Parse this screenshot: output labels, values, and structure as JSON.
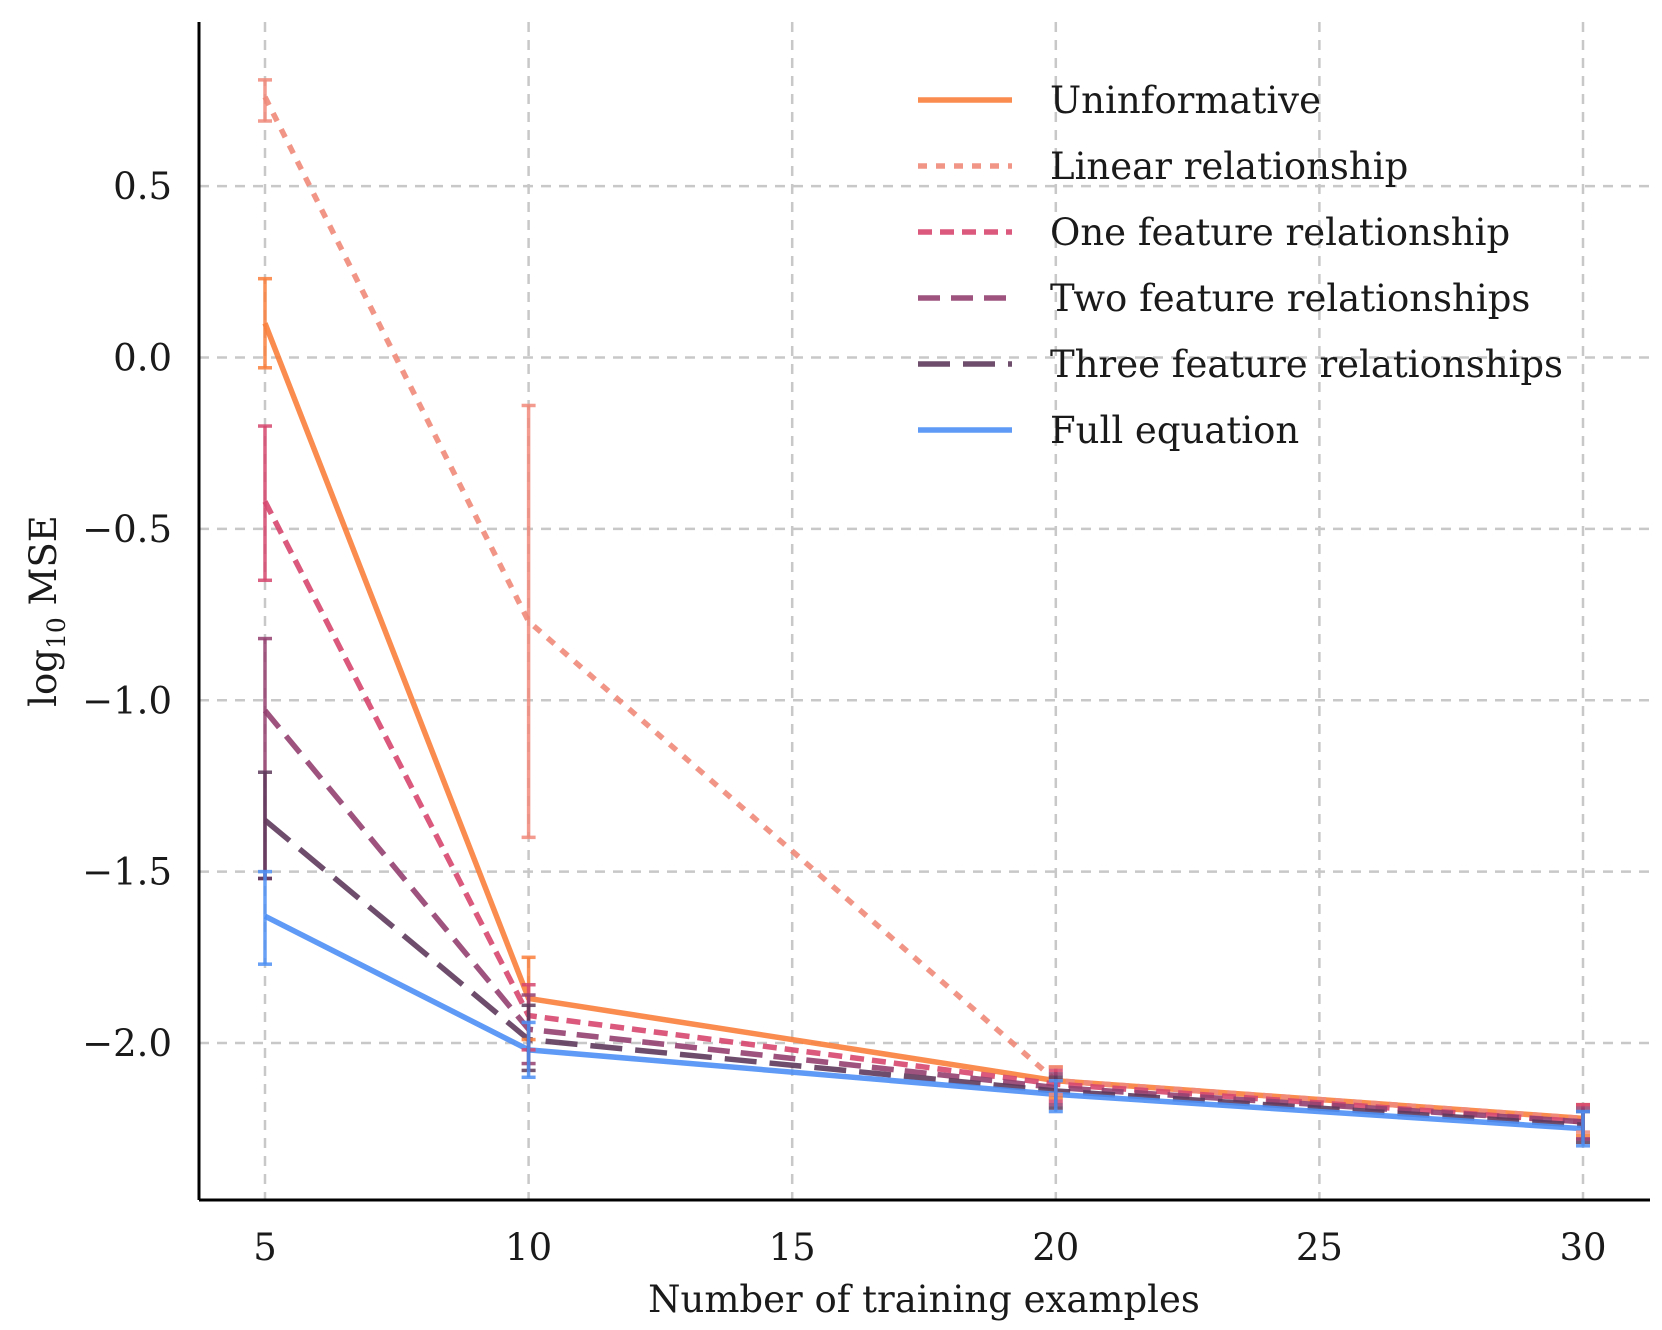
{
  "chart_data": {
    "type": "line",
    "title": "",
    "xlabel": "Number of training examples",
    "ylabel": "log10 MSE",
    "ylabel_base": "log",
    "ylabel_sub": "10",
    "ylabel_rest": " MSE",
    "x": [
      5,
      10,
      20,
      30
    ],
    "xlim": [
      3.75,
      31.25
    ],
    "ylim": [
      -2.45,
      0.97
    ],
    "xticks": [
      5,
      10,
      15,
      20,
      25,
      30
    ],
    "xtick_labels": [
      "5",
      "10",
      "15",
      "20",
      "25",
      "30"
    ],
    "yticks": [
      0.5,
      0.0,
      -0.5,
      -1.0,
      -1.5,
      -2.0
    ],
    "ytick_labels": [
      "0.5",
      "0.0",
      "−0.5",
      "−1.0",
      "−1.5",
      "−2.0"
    ],
    "grid": true,
    "legend_position": "top-right",
    "series": [
      {
        "name": "Uninformative",
        "color": "#f97f3c",
        "dash": "solid",
        "values": [
          0.1,
          -1.87,
          -2.11,
          -2.22
        ],
        "err_low": [
          -0.03,
          -1.99,
          -2.16,
          -2.27
        ],
        "err_high": [
          0.23,
          -1.75,
          -2.07,
          -2.18
        ]
      },
      {
        "name": "Linear relationship",
        "color": "#f0897a",
        "dash": "dotted",
        "values": [
          0.76,
          -0.77,
          -2.11,
          -2.22
        ],
        "err_low": [
          0.69,
          -1.4,
          -2.15,
          -2.26
        ],
        "err_high": [
          0.81,
          -0.14,
          -2.07,
          -2.18
        ]
      },
      {
        "name": "One feature relationship",
        "color": "#d6476f",
        "dash": "dashed-short",
        "values": [
          -0.42,
          -1.92,
          -2.12,
          -2.23
        ],
        "err_low": [
          -0.65,
          -2.02,
          -2.17,
          -2.28
        ],
        "err_high": [
          -0.2,
          -1.83,
          -2.08,
          -2.18
        ]
      },
      {
        "name": "Two feature relationships",
        "color": "#944070",
        "dash": "dashed",
        "values": [
          -1.03,
          -1.96,
          -2.13,
          -2.23
        ],
        "err_low": [
          -1.52,
          -2.06,
          -2.18,
          -2.28
        ],
        "err_high": [
          -0.82,
          -1.86,
          -2.09,
          -2.19
        ]
      },
      {
        "name": "Three feature relationships",
        "color": "#5e3a5c",
        "dash": "dashed-long",
        "values": [
          -1.35,
          -1.99,
          -2.14,
          -2.24
        ],
        "err_low": [
          -1.52,
          -2.08,
          -2.19,
          -2.29
        ],
        "err_high": [
          -1.21,
          -1.89,
          -2.1,
          -2.2
        ]
      },
      {
        "name": "Full equation",
        "color": "#4d8ff5",
        "dash": "solid",
        "values": [
          -1.63,
          -2.02,
          -2.15,
          -2.25
        ],
        "err_low": [
          -1.77,
          -2.1,
          -2.2,
          -2.3
        ],
        "err_high": [
          -1.5,
          -1.94,
          -2.11,
          -2.2
        ]
      }
    ]
  }
}
